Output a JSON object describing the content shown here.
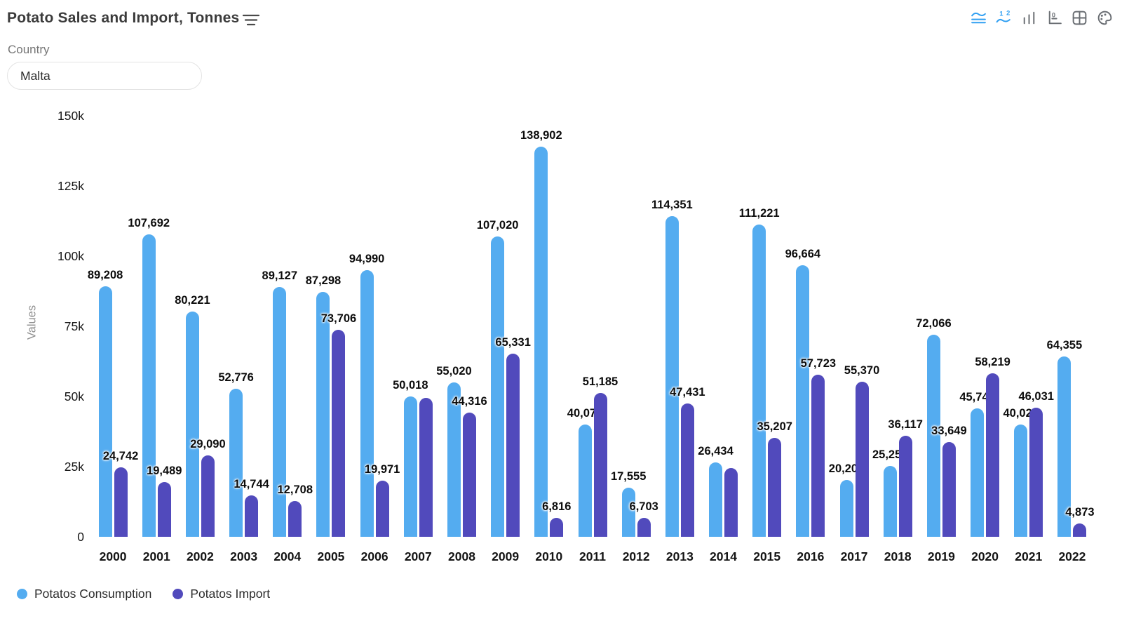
{
  "header": {
    "title": "Potato Sales and Import, Tonnes"
  },
  "toolbar": {
    "icons": [
      {
        "name": "area-chart-icon",
        "active": true
      },
      {
        "name": "data-labels-icon",
        "active": true
      },
      {
        "name": "bar-chart-icon",
        "active": false
      },
      {
        "name": "axis-scale-icon",
        "active": false
      },
      {
        "name": "data-grid-icon",
        "active": false
      },
      {
        "name": "palette-icon",
        "active": false
      }
    ]
  },
  "filter": {
    "label": "Country",
    "value": "Malta"
  },
  "chart_data": {
    "type": "bar",
    "title": "Potato Sales and Import, Tonnes",
    "xlabel": "",
    "ylabel": "Values",
    "ylim": [
      0,
      150000
    ],
    "grid": false,
    "legend_position": "bottom-left",
    "yticks": [
      {
        "value": 150000,
        "label": "150k"
      },
      {
        "value": 125000,
        "label": "125k"
      },
      {
        "value": 100000,
        "label": "100k"
      },
      {
        "value": 75000,
        "label": "75k"
      },
      {
        "value": 50000,
        "label": "50k"
      },
      {
        "value": 25000,
        "label": "25k"
      },
      {
        "value": 0,
        "label": "0"
      }
    ],
    "categories": [
      "2000",
      "2001",
      "2002",
      "2003",
      "2004",
      "2005",
      "2006",
      "2007",
      "2008",
      "2009",
      "2010",
      "2011",
      "2012",
      "2013",
      "2014",
      "2015",
      "2016",
      "2017",
      "2018",
      "2019",
      "2020",
      "2021",
      "2022"
    ],
    "series": [
      {
        "name": "Potatos Consumption",
        "color": "#54acf0",
        "values": [
          89208,
          107692,
          80221,
          52776,
          89127,
          87298,
          94990,
          50018,
          55020,
          107020,
          138902,
          40071,
          17555,
          114351,
          26434,
          111221,
          96664,
          20201,
          25251,
          72066,
          45742,
          40021,
          64355
        ],
        "labels": [
          "89,208",
          "107,692",
          "80,221",
          "52,776",
          "89,127",
          "87,298",
          "94,990",
          "50,018",
          "55,020",
          "107,020",
          "138,902",
          "40,071",
          "17,555",
          "114,351",
          "26,434",
          "111,221",
          "96,664",
          "20,201",
          "25,251",
          "72,066",
          "45,742",
          "40,021",
          "64,355"
        ]
      },
      {
        "name": "Potatos Import",
        "color": "#514abc",
        "values": [
          24742,
          19489,
          29090,
          14744,
          12708,
          73706,
          19971,
          49500,
          44316,
          65331,
          6816,
          51185,
          6703,
          47431,
          24500,
          35207,
          57723,
          55370,
          36117,
          33649,
          58219,
          46031,
          4873
        ],
        "labels": [
          "24,742",
          "19,489",
          "29,090",
          "14,744",
          "12,708",
          "73,706",
          "19,971",
          null,
          "44,316",
          "65,331",
          "6,816",
          "51,185",
          "6,703",
          "47,431",
          null,
          "35,207",
          "57,723",
          "55,370",
          "36,117",
          "33,649",
          "58,219",
          "46,031",
          "4,873"
        ]
      }
    ]
  }
}
